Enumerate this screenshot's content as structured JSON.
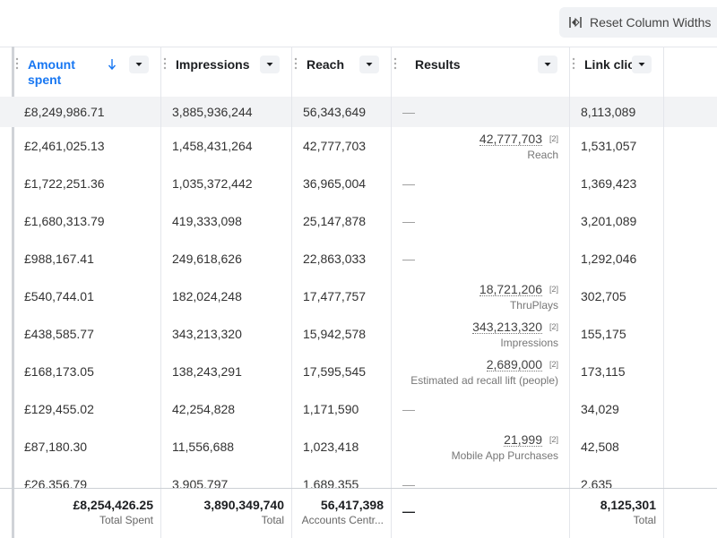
{
  "header": {
    "button": "Reset Column Widths"
  },
  "table": {
    "columns": [
      "Amount spent",
      "Impressions",
      "Reach",
      "Results",
      "Link clicks"
    ],
    "rows": [
      [
        "£8,249,986.71",
        "3,885,936,244",
        "56,343,649",
        "—",
        "8,113,089"
      ],
      [
        "£2,461,025.13",
        "1,458,431,264",
        "42,777,703",
        {
          "value": "42,777,703",
          "note": "[2]",
          "label": "Reach"
        },
        "1,531,057"
      ],
      [
        "£1,722,251.36",
        "1,035,372,442",
        "36,965,004",
        "—",
        "1,369,423"
      ],
      [
        "£1,680,313.79",
        "419,333,098",
        "25,147,878",
        "—",
        "3,201,089"
      ],
      [
        "£988,167.41",
        "249,618,626",
        "22,863,033",
        "—",
        "1,292,046"
      ],
      [
        "£540,744.01",
        "182,024,248",
        "17,477,757",
        {
          "value": "18,721,206",
          "note": "[2]",
          "label": "ThruPlays"
        },
        "302,705"
      ],
      [
        "£438,585.77",
        "343,213,320",
        "15,942,578",
        {
          "value": "343,213,320",
          "note": "[2]",
          "label": "Impressions"
        },
        "155,175"
      ],
      [
        "£168,173.05",
        "138,243,291",
        "17,595,545",
        {
          "value": "2,689,000",
          "note": "[2]",
          "label": "Estimated ad recall lift (people)"
        },
        "173,115"
      ],
      [
        "£129,455.02",
        "42,254,828",
        "1,171,590",
        "—",
        "34,029"
      ],
      [
        "£87,180.30",
        "11,556,688",
        "1,023,418",
        {
          "value": "21,999",
          "note": "[2]",
          "label": "Mobile App Purchases"
        },
        "42,508"
      ],
      [
        "£26,356.79",
        "3,905,797",
        "1,689,355",
        "—",
        "2,635"
      ]
    ],
    "totals": [
      {
        "value": "£8,254,426.25",
        "label": "Total Spent"
      },
      {
        "value": "3,890,349,740",
        "label": "Total"
      },
      {
        "value": "56,417,398",
        "label": "Accounts Centr..."
      },
      {
        "value": "—"
      },
      {
        "value": "8,125,301",
        "label": "Total"
      }
    ]
  }
}
